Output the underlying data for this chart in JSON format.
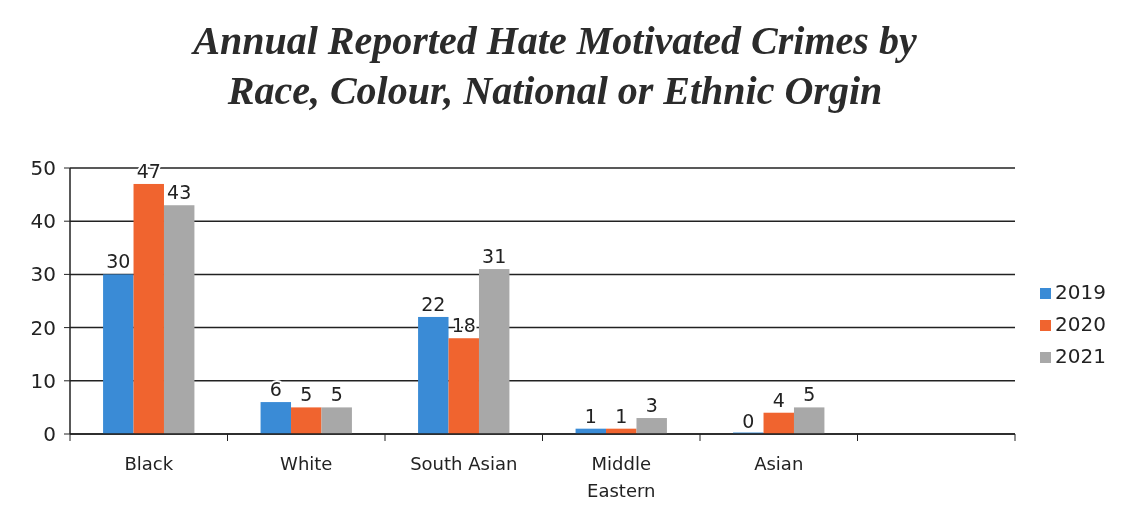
{
  "chart_data": {
    "type": "bar",
    "title": "Annual Reported Hate Motivated Crimes by Race, Colour, National or Ethnic Orgin",
    "categories": [
      "Black",
      "White",
      "South Asian",
      "Middle Eastern",
      "Asian",
      null
    ],
    "series": [
      {
        "name": "2019",
        "color": "#3a8bd6",
        "values": [
          30,
          6,
          22,
          1,
          0,
          null
        ]
      },
      {
        "name": "2020",
        "color": "#f0642f",
        "values": [
          47,
          5,
          18,
          1,
          4,
          null
        ]
      },
      {
        "name": "2021",
        "color": "#a8a8a8",
        "values": [
          43,
          5,
          31,
          3,
          5,
          null
        ]
      }
    ],
    "ylim": [
      0,
      50
    ],
    "yticks": [
      0,
      10,
      20,
      30,
      40,
      50
    ],
    "grid": "y",
    "legend": "right",
    "data_labels": true
  }
}
